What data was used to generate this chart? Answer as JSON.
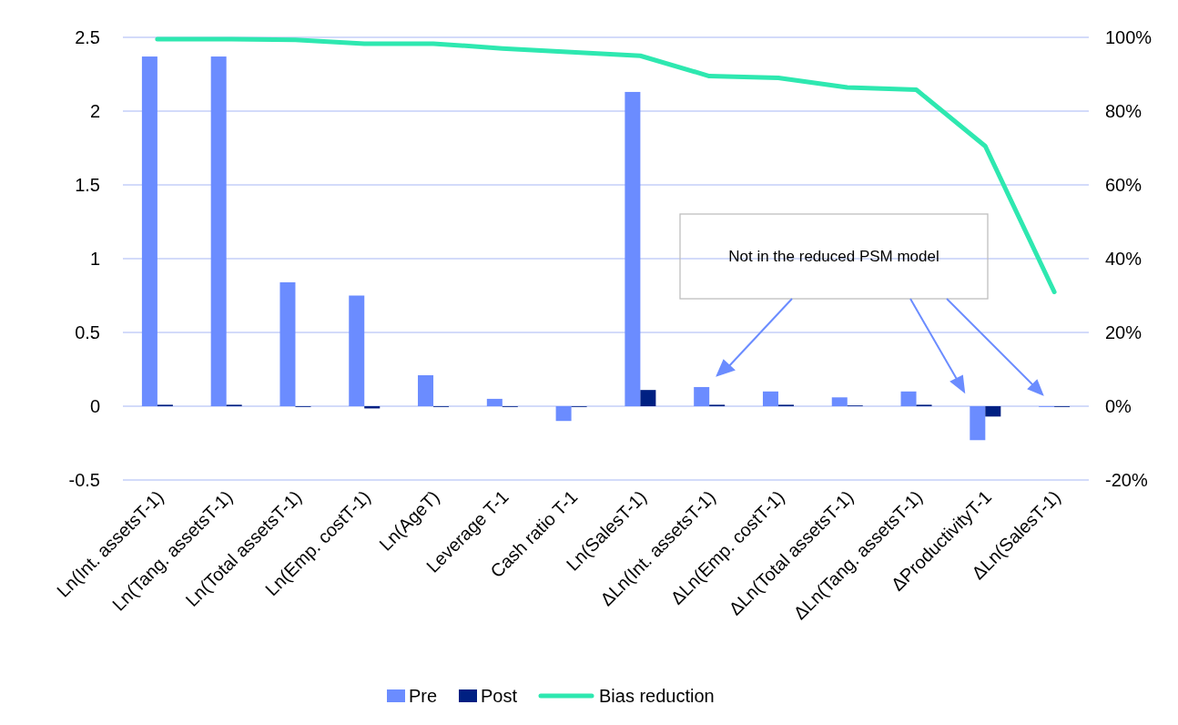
{
  "chart_data": {
    "type": "bar",
    "categories": [
      "Ln(Int. assetsT-1)",
      "Ln(Tang. assetsT-1)",
      "Ln(Total assetsT-1)",
      "Ln(Emp. costT-1)",
      "Ln(AgeT)",
      "Leverage T-1",
      "Cash ratio T-1",
      "Ln(SalesT-1)",
      "ΔLn(Int. assetsT-1)",
      "ΔLn(Emp. costT-1)",
      "ΔLn(Total assetsT-1)",
      "ΔLn(Tang. assetsT-1)",
      "ΔProductivityT-1",
      "ΔLn(SalesT-1)"
    ],
    "series": [
      {
        "name": "Pre",
        "color": "#6b8cff",
        "values": [
          2.37,
          2.37,
          0.84,
          0.75,
          0.21,
          0.05,
          -0.1,
          2.13,
          0.13,
          0.1,
          0.06,
          0.1,
          -0.23,
          -0.005
        ]
      },
      {
        "name": "Post",
        "color": "#002082",
        "values": [
          0.01,
          0.01,
          -0.005,
          -0.015,
          0,
          0,
          0,
          0.11,
          0.01,
          0.01,
          0.005,
          0.01,
          -0.07,
          -0.005
        ]
      },
      {
        "name": "Bias reduction",
        "type": "line",
        "axis": "y2",
        "color": "#2ee8b0",
        "values": [
          99.5,
          99.5,
          99.3,
          98.3,
          98.3,
          97,
          96,
          95,
          89.5,
          89,
          86.4,
          85.8,
          70.5,
          31
        ]
      }
    ],
    "ylim": [
      -0.5,
      2.5
    ],
    "yticks": [
      -0.5,
      0,
      0.5,
      1,
      1.5,
      2,
      2.5
    ],
    "y2lim": [
      -20,
      100
    ],
    "y2ticks": [
      {
        "value": -20,
        "label": "-20%"
      },
      {
        "value": 0,
        "label": "0%"
      },
      {
        "value": 20,
        "label": "20%"
      },
      {
        "value": 40,
        "label": "40%"
      },
      {
        "value": 60,
        "label": "60%"
      },
      {
        "value": 80,
        "label": "80%"
      },
      {
        "value": 100,
        "label": "100%"
      }
    ],
    "grid": "y",
    "legend": "bottom",
    "marker": "none",
    "line_style": "solid",
    "annotations": [
      "Not in the reduced PSM model"
    ]
  }
}
